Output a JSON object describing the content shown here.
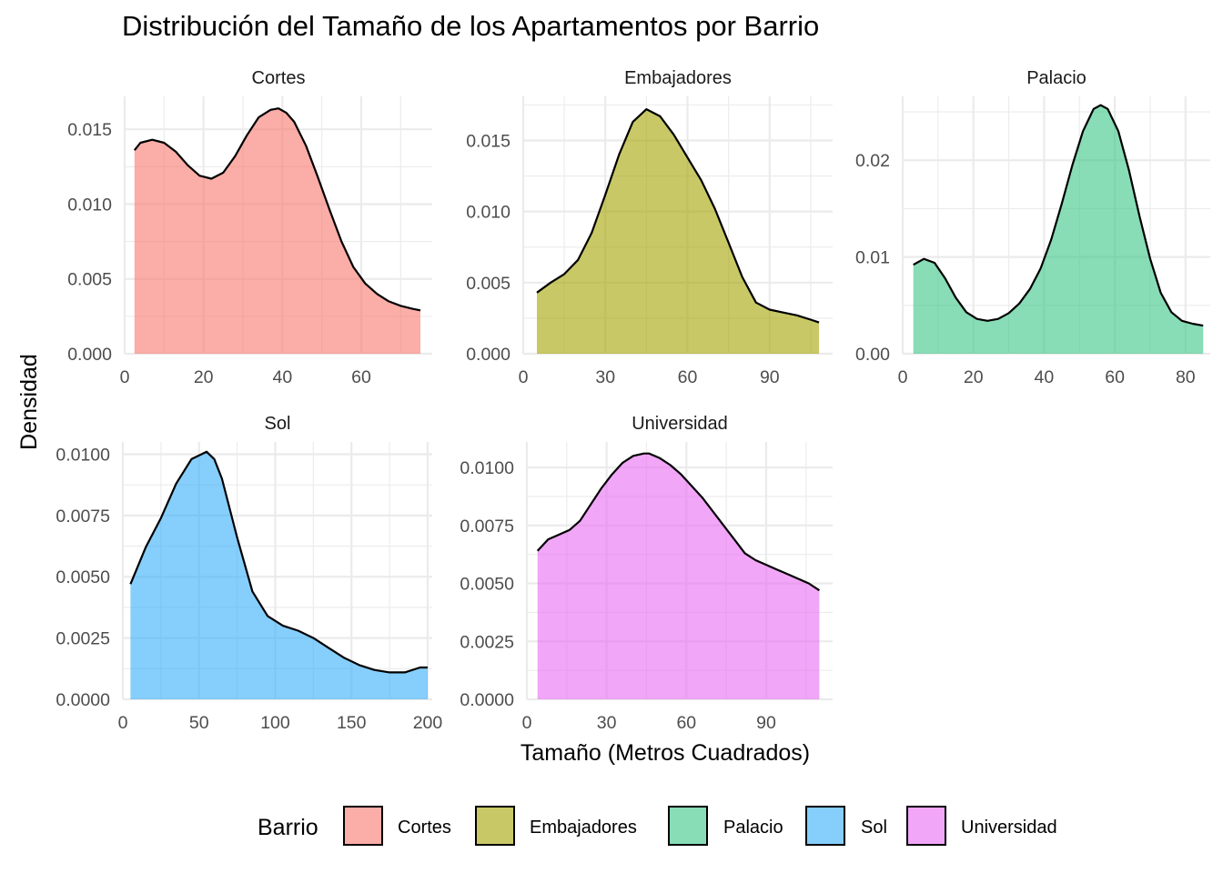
{
  "chart_data": {
    "type": "area",
    "title": "Distribución del Tamaño de los Apartamentos por Barrio",
    "xlabel": "Tamaño (Metros Cuadrados)",
    "ylabel": "Densidad",
    "legend": {
      "title": "Barrio",
      "position": "bottom",
      "entries": [
        {
          "label": "Cortes",
          "color": "#F8766D"
        },
        {
          "label": "Embajadores",
          "color": "#A3A500"
        },
        {
          "label": "Palacio",
          "color": "#39C586"
        },
        {
          "label": "Sol",
          "color": "#36ADF8"
        },
        {
          "label": "Universidad",
          "color": "#E76BF3"
        }
      ]
    },
    "grid": true,
    "panels": [
      {
        "name": "Cortes",
        "color": "#F8766D",
        "xlim": [
          0,
          78
        ],
        "ylim": [
          0,
          0.0172
        ],
        "xticks": [
          0,
          20,
          40,
          60
        ],
        "xtick_labels": [
          "0",
          "20",
          "40",
          "60"
        ],
        "yticks": [
          0,
          0.005,
          0.01,
          0.015
        ],
        "ytick_labels": [
          "0.000",
          "0.005",
          "0.010",
          "0.015"
        ],
        "x": [
          2.5,
          4,
          7,
          10,
          13,
          16,
          19,
          22,
          25,
          28,
          31,
          34,
          37,
          39,
          41,
          43,
          46,
          49,
          52,
          55,
          58,
          61,
          64,
          67,
          70,
          73,
          75
        ],
        "y": [
          0.0136,
          0.0141,
          0.0143,
          0.0141,
          0.0135,
          0.0126,
          0.0119,
          0.0117,
          0.0121,
          0.0132,
          0.0146,
          0.0158,
          0.0163,
          0.0164,
          0.0161,
          0.0155,
          0.0139,
          0.0118,
          0.0096,
          0.0075,
          0.0058,
          0.0047,
          0.004,
          0.0035,
          0.0032,
          0.003,
          0.0029
        ]
      },
      {
        "name": "Embajadores",
        "color": "#A3A500",
        "xlim": [
          0,
          113
        ],
        "ylim": [
          0,
          0.0181
        ],
        "xticks": [
          0,
          30,
          60,
          90
        ],
        "xtick_labels": [
          "0",
          "30",
          "60",
          "90"
        ],
        "yticks": [
          0,
          0.005,
          0.01,
          0.015
        ],
        "ytick_labels": [
          "0.000",
          "0.005",
          "0.010",
          "0.015"
        ],
        "x": [
          5,
          10,
          15,
          20,
          25,
          30,
          35,
          40,
          45,
          50,
          55,
          60,
          65,
          70,
          75,
          80,
          85,
          90,
          95,
          100,
          105,
          108
        ],
        "y": [
          0.0043,
          0.005,
          0.0056,
          0.0066,
          0.0085,
          0.0112,
          0.014,
          0.0163,
          0.0172,
          0.0167,
          0.0154,
          0.0138,
          0.0122,
          0.0102,
          0.0078,
          0.0054,
          0.0036,
          0.0031,
          0.0029,
          0.0027,
          0.0024,
          0.0022
        ]
      },
      {
        "name": "Palacio",
        "color": "#39C586",
        "xlim": [
          0,
          87
        ],
        "ylim": [
          0,
          0.0266
        ],
        "xticks": [
          0,
          20,
          40,
          60,
          80
        ],
        "xtick_labels": [
          "0",
          "20",
          "40",
          "60",
          "80"
        ],
        "yticks": [
          0,
          0.01,
          0.02
        ],
        "ytick_labels": [
          "0.00",
          "0.01",
          "0.02"
        ],
        "x": [
          3,
          6,
          9,
          12,
          15,
          18,
          21,
          24,
          27,
          30,
          33,
          36,
          39,
          42,
          45,
          48,
          51,
          54,
          56,
          58,
          61,
          64,
          67,
          70,
          73,
          76,
          79,
          82,
          85
        ],
        "y": [
          0.0092,
          0.0098,
          0.0094,
          0.0078,
          0.0058,
          0.0043,
          0.0036,
          0.0034,
          0.0036,
          0.0042,
          0.0052,
          0.0067,
          0.0088,
          0.0118,
          0.0155,
          0.0195,
          0.023,
          0.0253,
          0.0257,
          0.0253,
          0.023,
          0.019,
          0.0142,
          0.0098,
          0.0063,
          0.0043,
          0.0034,
          0.0031,
          0.0029
        ]
      },
      {
        "name": "Sol",
        "color": "#36ADF8",
        "xlim": [
          0,
          203
        ],
        "ylim": [
          0,
          0.0105
        ],
        "xticks": [
          0,
          50,
          100,
          150,
          200
        ],
        "xtick_labels": [
          "0",
          "50",
          "100",
          "150",
          "200"
        ],
        "yticks": [
          0,
          0.0025,
          0.005,
          0.0075,
          0.01
        ],
        "ytick_labels": [
          "0.0000",
          "0.0025",
          "0.0050",
          "0.0075",
          "0.0100"
        ],
        "x": [
          5,
          15,
          25,
          35,
          45,
          55,
          60,
          65,
          75,
          85,
          95,
          105,
          115,
          125,
          135,
          145,
          155,
          165,
          175,
          185,
          195,
          200
        ],
        "y": [
          0.0047,
          0.0062,
          0.0074,
          0.0088,
          0.0098,
          0.0101,
          0.0098,
          0.009,
          0.0066,
          0.0044,
          0.0034,
          0.003,
          0.0028,
          0.0025,
          0.0021,
          0.0017,
          0.0014,
          0.0012,
          0.0011,
          0.0011,
          0.0013,
          0.0013
        ]
      },
      {
        "name": "Universidad",
        "color": "#E76BF3",
        "xlim": [
          0,
          115
        ],
        "ylim": [
          0,
          0.0111
        ],
        "xticks": [
          0,
          30,
          60,
          90
        ],
        "xtick_labels": [
          "0",
          "30",
          "60",
          "90"
        ],
        "yticks": [
          0,
          0.0025,
          0.005,
          0.0075,
          0.01
        ],
        "ytick_labels": [
          "0.0000",
          "0.0025",
          "0.0050",
          "0.0075",
          "0.0100"
        ],
        "x": [
          4,
          8,
          12,
          16,
          20,
          24,
          28,
          32,
          36,
          40,
          44,
          46,
          50,
          54,
          58,
          62,
          66,
          70,
          74,
          78,
          82,
          86,
          90,
          94,
          98,
          102,
          106,
          110
        ],
        "y": [
          0.0064,
          0.0069,
          0.0071,
          0.0073,
          0.0077,
          0.0084,
          0.0091,
          0.0097,
          0.0102,
          0.0105,
          0.0106,
          0.0106,
          0.0104,
          0.0101,
          0.0097,
          0.0092,
          0.0087,
          0.0081,
          0.0075,
          0.0069,
          0.0063,
          0.006,
          0.0058,
          0.0056,
          0.0054,
          0.0052,
          0.005,
          0.0047
        ]
      }
    ]
  }
}
